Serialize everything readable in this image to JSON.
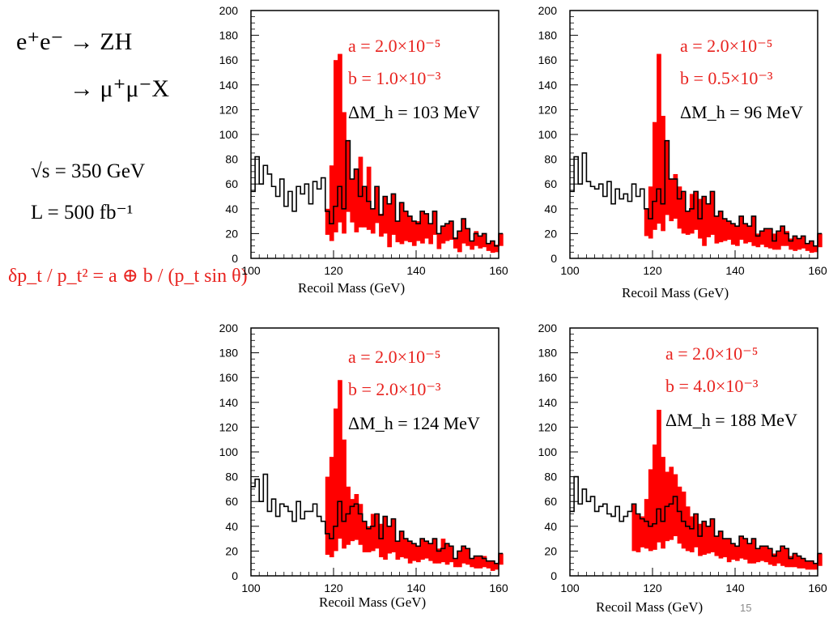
{
  "process": {
    "line1": "e⁺e⁻ → ZH",
    "line2": "→ μ⁺μ⁻X"
  },
  "conditions": {
    "sqrt_s": "√s = 350 GeV",
    "lumi": "L = 500 fb⁻¹"
  },
  "resolution_formula": "δp_t / p_t² = a ⊕ b / (p_t sin θ)",
  "page_number": "15",
  "colors": {
    "signal": "#ff0000",
    "accent_text": "#e8231f",
    "outline": "#000000"
  },
  "chart_data": [
    {
      "type": "histogram",
      "xlabel": "Recoil Mass (GeV)",
      "xlim": [
        100,
        160
      ],
      "ylim": [
        0,
        200
      ],
      "xticks": [
        100,
        120,
        140,
        160
      ],
      "yticks": [
        0,
        20,
        40,
        60,
        80,
        100,
        120,
        140,
        160,
        180,
        200
      ],
      "annotations": {
        "a": "a = 2.0×10⁻⁵",
        "b": "b = 1.0×10⁻³",
        "dm": "ΔM_h = 103 MeV"
      },
      "bin_width": 1,
      "series": [
        {
          "name": "black",
          "values": [
            54,
            82,
            60,
            75,
            68,
            58,
            50,
            64,
            42,
            54,
            38,
            58,
            52,
            60,
            44,
            62,
            56,
            65,
            38,
            28,
            42,
            58,
            40,
            95,
            64,
            72,
            50,
            58,
            46,
            40,
            58,
            35,
            50,
            44,
            52,
            30,
            45,
            38,
            34,
            30,
            28,
            38,
            36,
            28,
            38,
            20,
            26,
            28,
            30,
            16,
            22,
            32,
            24,
            14,
            20,
            18,
            20,
            12,
            14,
            10,
            20
          ]
        },
        {
          "name": "red",
          "values": [
            null,
            null,
            null,
            null,
            null,
            null,
            null,
            null,
            null,
            null,
            null,
            null,
            null,
            null,
            null,
            null,
            null,
            null,
            40,
            75,
            160,
            165,
            118,
            75,
            58,
            42,
            82,
            50,
            74,
            40,
            57,
            36,
            40,
            18,
            38,
            26,
            23,
            28,
            26,
            20,
            30,
            24,
            32,
            23,
            38,
            15,
            24,
            28,
            30,
            17,
            10,
            24,
            20,
            14,
            22,
            16,
            18,
            12,
            9,
            11,
            20
          ]
        }
      ]
    },
    {
      "type": "histogram",
      "xlabel": "Recoil Mass (GeV)",
      "xlim": [
        100,
        160
      ],
      "ylim": [
        0,
        200
      ],
      "xticks": [
        100,
        120,
        140,
        160
      ],
      "yticks": [
        0,
        20,
        40,
        60,
        80,
        100,
        120,
        140,
        160,
        180,
        200
      ],
      "annotations": {
        "a": "a = 2.0×10⁻⁵",
        "b": "b = 0.5×10⁻³",
        "dm": "ΔM_h = 96 MeV"
      },
      "bin_width": 1,
      "series": [
        {
          "name": "black",
          "values": [
            54,
            82,
            60,
            85,
            62,
            58,
            56,
            60,
            50,
            62,
            44,
            56,
            48,
            52,
            46,
            60,
            50,
            56,
            40,
            32,
            46,
            56,
            44,
            95,
            64,
            64,
            48,
            54,
            38,
            40,
            54,
            32,
            50,
            44,
            54,
            34,
            38,
            32,
            30,
            28,
            26,
            34,
            28,
            26,
            34,
            18,
            22,
            24,
            24,
            14,
            22,
            26,
            20,
            14,
            18,
            16,
            18,
            12,
            14,
            10,
            20
          ]
        },
        {
          "name": "red",
          "values": [
            null,
            null,
            null,
            null,
            null,
            null,
            null,
            null,
            null,
            null,
            null,
            null,
            null,
            null,
            null,
            null,
            null,
            null,
            36,
            58,
            110,
            165,
            115,
            70,
            60,
            68,
            58,
            40,
            38,
            52,
            46,
            48,
            20,
            34,
            38,
            24,
            26,
            28,
            30,
            22,
            20,
            30,
            24,
            26,
            20,
            20,
            22,
            18,
            16,
            20,
            14,
            20,
            22,
            16,
            12,
            14,
            16,
            12,
            9,
            10,
            18
          ]
        }
      ]
    },
    {
      "type": "histogram",
      "xlabel": "Recoil Mass (GeV)",
      "xlim": [
        100,
        160
      ],
      "ylim": [
        0,
        200
      ],
      "xticks": [
        100,
        120,
        140,
        160
      ],
      "yticks": [
        0,
        20,
        40,
        60,
        80,
        100,
        120,
        140,
        160,
        180,
        200
      ],
      "annotations": {
        "a": "a = 2.0×10⁻⁵",
        "b": "b = 2.0×10⁻³",
        "dm": "ΔM_h = 124 MeV"
      },
      "bin_width": 1,
      "series": [
        {
          "name": "black",
          "values": [
            72,
            78,
            60,
            82,
            52,
            62,
            48,
            58,
            56,
            52,
            44,
            60,
            46,
            52,
            52,
            58,
            48,
            44,
            34,
            30,
            40,
            60,
            44,
            50,
            56,
            58,
            50,
            44,
            38,
            40,
            50,
            30,
            48,
            40,
            46,
            28,
            36,
            30,
            28,
            26,
            24,
            30,
            28,
            26,
            30,
            20,
            22,
            26,
            24,
            14,
            20,
            24,
            22,
            14,
            16,
            16,
            14,
            12,
            12,
            10,
            18
          ]
        },
        {
          "name": "red",
          "values": [
            null,
            null,
            null,
            null,
            null,
            null,
            null,
            null,
            null,
            null,
            null,
            null,
            null,
            null,
            null,
            null,
            null,
            null,
            80,
            96,
            135,
            158,
            110,
            72,
            62,
            66,
            58,
            38,
            40,
            50,
            44,
            42,
            26,
            36,
            38,
            26,
            30,
            28,
            20,
            24,
            22,
            26,
            28,
            24,
            20,
            22,
            30,
            18,
            22,
            14,
            14,
            20,
            18,
            14,
            12,
            12,
            16,
            12,
            8,
            10,
            18
          ]
        }
      ]
    },
    {
      "type": "histogram",
      "xlabel": "Recoil Mass (GeV)",
      "xlim": [
        100,
        160
      ],
      "ylim": [
        0,
        200
      ],
      "xticks": [
        100,
        120,
        140,
        160
      ],
      "yticks": [
        0,
        20,
        40,
        60,
        80,
        100,
        120,
        140,
        160,
        180,
        200
      ],
      "annotations": {
        "a": "a = 2.0×10⁻⁵",
        "b": "b = 4.0×10⁻³",
        "dm": "ΔM_h = 188 MeV"
      },
      "bin_width": 1,
      "series": [
        {
          "name": "black",
          "values": [
            52,
            80,
            58,
            70,
            60,
            64,
            52,
            56,
            58,
            50,
            48,
            56,
            44,
            48,
            52,
            58,
            50,
            46,
            44,
            40,
            42,
            54,
            44,
            56,
            58,
            64,
            52,
            44,
            40,
            38,
            50,
            32,
            44,
            40,
            46,
            32,
            36,
            30,
            30,
            26,
            24,
            32,
            30,
            26,
            30,
            22,
            24,
            24,
            22,
            16,
            20,
            24,
            22,
            14,
            18,
            16,
            14,
            12,
            12,
            10,
            18
          ]
        },
        {
          "name": "red",
          "values": [
            null,
            null,
            null,
            null,
            null,
            null,
            null,
            null,
            null,
            null,
            null,
            null,
            null,
            null,
            null,
            40,
            38,
            48,
            62,
            86,
            106,
            134,
            96,
            84,
            88,
            82,
            72,
            68,
            56,
            48,
            46,
            42,
            34,
            36,
            38,
            32,
            28,
            30,
            22,
            26,
            24,
            28,
            26,
            20,
            20,
            22,
            24,
            22,
            18,
            18,
            20,
            16,
            14,
            16,
            14,
            12,
            12,
            10,
            10,
            10,
            16
          ]
        }
      ]
    }
  ]
}
